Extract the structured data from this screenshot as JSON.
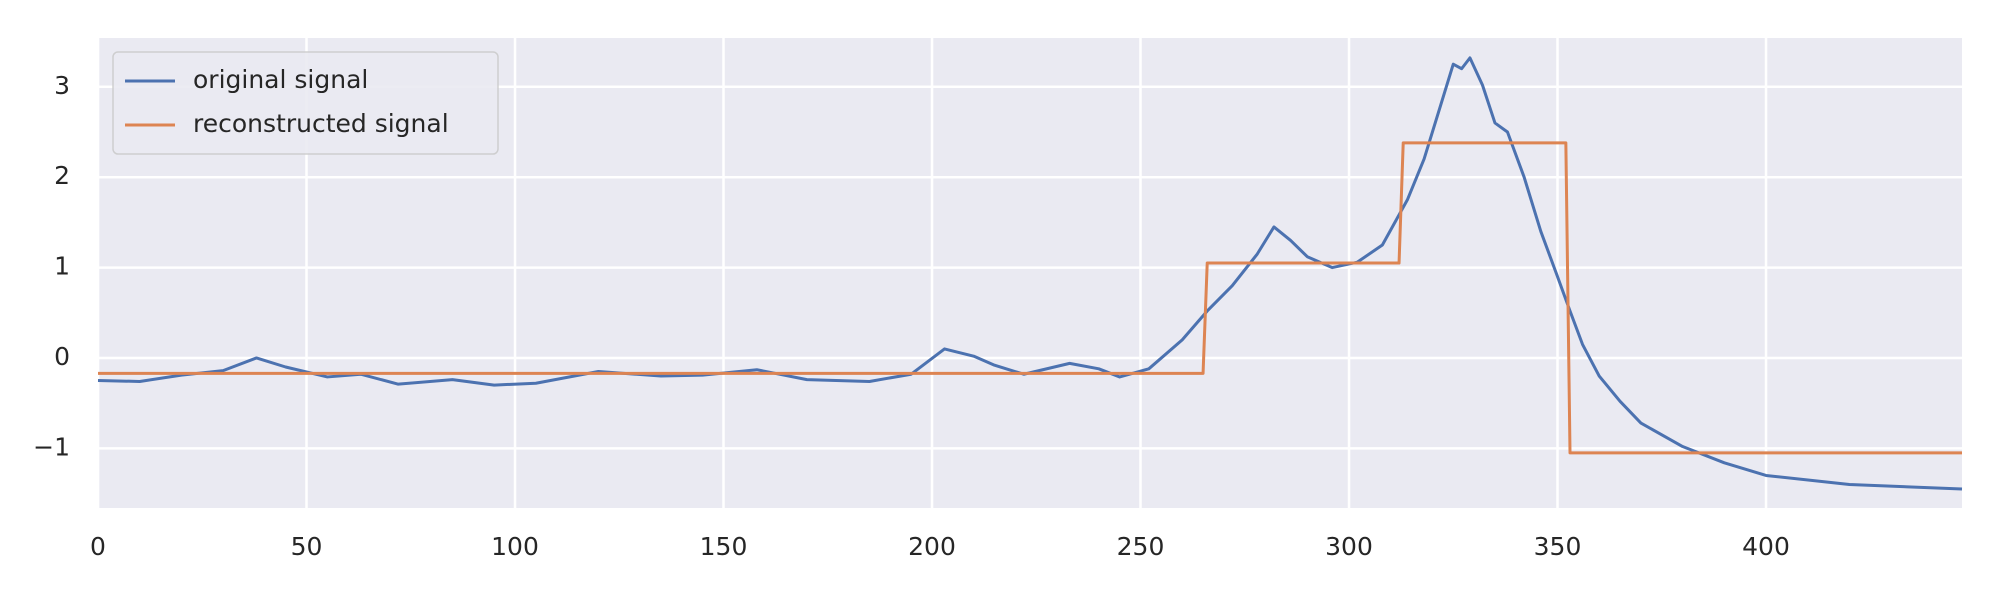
{
  "chart_data": {
    "type": "line",
    "series": [
      {
        "name": "original signal",
        "color": "#4c72b0",
        "x": [
          0,
          10,
          20,
          30,
          38,
          45,
          55,
          63,
          72,
          85,
          95,
          105,
          120,
          135,
          145,
          158,
          170,
          185,
          195,
          203,
          210,
          215,
          222,
          233,
          240,
          245,
          252,
          260,
          266,
          272,
          278,
          282,
          286,
          290,
          296,
          302,
          308,
          314,
          318,
          322,
          325,
          327,
          329,
          332,
          335,
          338,
          342,
          346,
          350,
          353,
          356,
          360,
          365,
          370,
          380,
          390,
          400,
          420,
          447
        ],
        "values": [
          -0.25,
          -0.26,
          -0.19,
          -0.14,
          0.0,
          -0.1,
          -0.21,
          -0.18,
          -0.29,
          -0.24,
          -0.3,
          -0.28,
          -0.15,
          -0.2,
          -0.19,
          -0.13,
          -0.24,
          -0.26,
          -0.18,
          0.1,
          0.02,
          -0.08,
          -0.18,
          -0.06,
          -0.12,
          -0.21,
          -0.12,
          0.2,
          0.52,
          0.8,
          1.15,
          1.45,
          1.3,
          1.12,
          1.0,
          1.06,
          1.25,
          1.75,
          2.2,
          2.8,
          3.25,
          3.2,
          3.32,
          3.02,
          2.6,
          2.5,
          2.0,
          1.4,
          0.9,
          0.52,
          0.15,
          -0.2,
          -0.48,
          -0.72,
          -0.98,
          -1.16,
          -1.3,
          -1.4,
          -1.45
        ]
      },
      {
        "name": "reconstructed signal",
        "color": "#dd8452",
        "x": [
          0,
          265,
          266,
          312,
          313,
          352,
          353,
          447
        ],
        "values": [
          -0.17,
          -0.17,
          1.05,
          1.05,
          2.38,
          2.38,
          -1.05,
          -1.05
        ]
      }
    ],
    "xlim": [
      0,
      447
    ],
    "xticks": [
      0,
      50,
      100,
      150,
      200,
      250,
      300,
      350,
      400
    ],
    "ylim": [
      -1.66,
      3.54
    ],
    "yticks": [
      {
        "value": -1,
        "label": "−1"
      },
      0,
      1,
      2,
      3
    ],
    "grid": true,
    "legend": "upper-left"
  }
}
